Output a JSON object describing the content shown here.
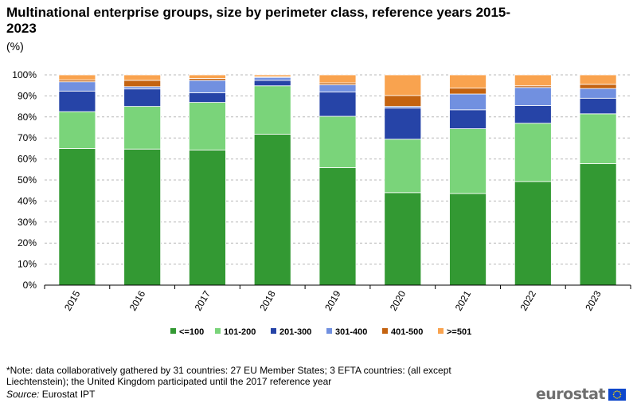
{
  "header": {
    "title": "Multinational enterprise groups, size by perimeter class, reference years 2015-2023",
    "unit": "(%)"
  },
  "footer": {
    "note": "*Note: data collaboratively gathered by 31 countries: 27 EU Member States; 3 EFTA countries: (all except Liechtenstein); the United Kingdom participated until the 2017 reference year",
    "source_label": "Source:",
    "source_value": "Eurostat IPT",
    "logo_text": "eurostat"
  },
  "colors": {
    "<=100": "#339933",
    "101-200": "#7ad47a",
    "201-300": "#2644a7",
    "301-400": "#7190e0",
    "401-500": "#c46310",
    ">=501": "#f9a34f",
    "gridline": "#b8b8b8",
    "axis": "#000000",
    "logo_flag": "#0e47cb",
    "logo_stars": "#ffdd00"
  },
  "chart_data": {
    "type": "bar",
    "stacked": true,
    "title": "Multinational enterprise groups, size by perimeter class, reference years 2015-2023",
    "ylabel": "(%)",
    "xlabel": "",
    "ylim": [
      0,
      100
    ],
    "yticks": [
      0,
      10,
      20,
      30,
      40,
      50,
      60,
      70,
      80,
      90,
      100
    ],
    "ytick_labels": [
      "0%",
      "10%",
      "20%",
      "30%",
      "40%",
      "50%",
      "60%",
      "70%",
      "80%",
      "90%",
      "100%"
    ],
    "grid": true,
    "legend_position": "bottom",
    "categories": [
      "2015",
      "2016",
      "2017",
      "2018",
      "2019",
      "2020",
      "2021",
      "2022",
      "2023"
    ],
    "series": [
      {
        "name": "<=100",
        "values": [
          65.0,
          64.7,
          64.3,
          71.8,
          55.9,
          44.0,
          43.6,
          49.3,
          57.8
        ]
      },
      {
        "name": "101-200",
        "values": [
          17.5,
          20.3,
          22.6,
          23.0,
          24.4,
          25.4,
          30.8,
          27.7,
          23.7
        ]
      },
      {
        "name": "201-300",
        "values": [
          9.8,
          8.3,
          4.6,
          2.6,
          11.6,
          14.8,
          9.0,
          8.4,
          7.4
        ]
      },
      {
        "name": "301-400",
        "values": [
          4.4,
          1.1,
          5.9,
          1.4,
          3.4,
          0.8,
          7.5,
          8.6,
          4.6
        ]
      },
      {
        "name": "401-500",
        "values": [
          0.9,
          3.0,
          0.9,
          0.3,
          0.9,
          5.2,
          2.8,
          0.8,
          2.0
        ]
      },
      {
        "name": ">=501",
        "values": [
          2.4,
          2.6,
          1.7,
          0.9,
          3.8,
          9.8,
          6.3,
          5.2,
          4.5
        ]
      }
    ]
  }
}
